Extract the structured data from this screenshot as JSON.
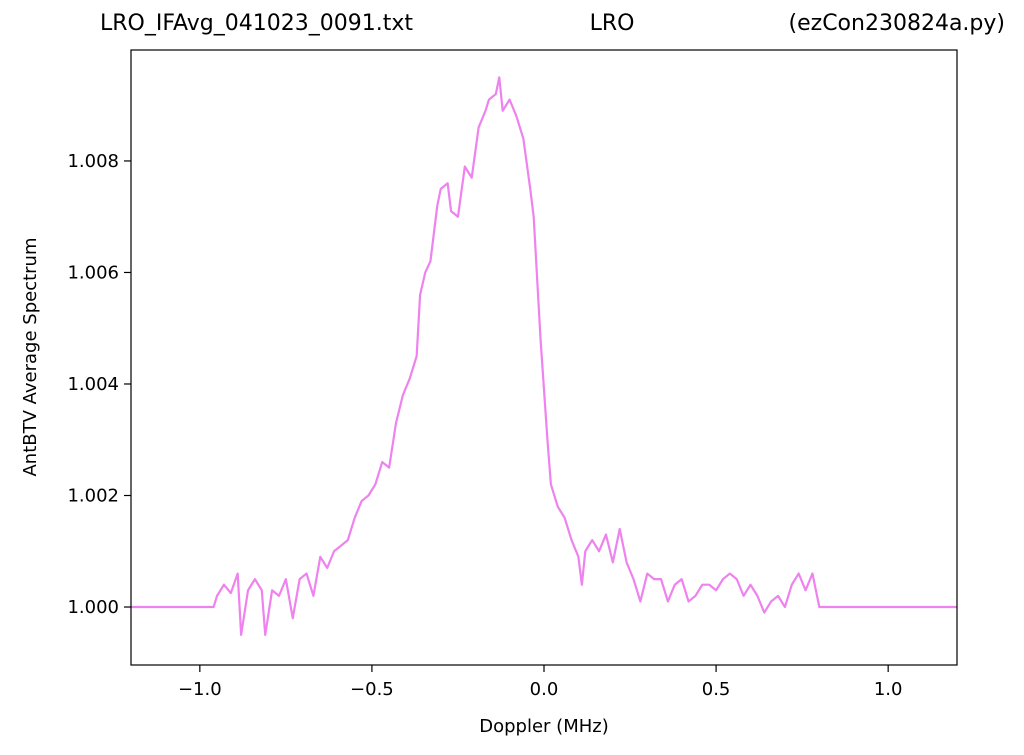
{
  "chart_data": {
    "type": "line",
    "title_left": "LRO_IFAvg_041023_0091.txt",
    "title_center": "LRO",
    "title_right": "(ezCon230824a.py)",
    "x_label": "Doppler (MHz)",
    "y_label": "AntBTV Average Spectrum",
    "xlim": [
      -1.2,
      1.2
    ],
    "ylim": [
      0.99896,
      1.00999
    ],
    "xticks": [
      {
        "value": -1.0,
        "label": "−1.0"
      },
      {
        "value": -0.5,
        "label": "−0.5"
      },
      {
        "value": 0.0,
        "label": "0.0"
      },
      {
        "value": 0.5,
        "label": "0.5"
      },
      {
        "value": 1.0,
        "label": "1.0"
      }
    ],
    "yticks": [
      {
        "value": 1.0,
        "label": "1.000"
      },
      {
        "value": 1.002,
        "label": "1.002"
      },
      {
        "value": 1.004,
        "label": "1.004"
      },
      {
        "value": 1.006,
        "label": "1.006"
      },
      {
        "value": 1.008,
        "label": "1.008"
      }
    ],
    "grid": false,
    "x": [
      -1.2,
      -0.96,
      -0.95,
      -0.93,
      -0.91,
      -0.89,
      -0.88,
      -0.86,
      -0.84,
      -0.82,
      -0.81,
      -0.79,
      -0.77,
      -0.75,
      -0.73,
      -0.71,
      -0.69,
      -0.67,
      -0.65,
      -0.63,
      -0.61,
      -0.59,
      -0.57,
      -0.55,
      -0.53,
      -0.51,
      -0.49,
      -0.47,
      -0.45,
      -0.43,
      -0.41,
      -0.39,
      -0.37,
      -0.36,
      -0.345,
      -0.33,
      -0.31,
      -0.3,
      -0.28,
      -0.27,
      -0.25,
      -0.23,
      -0.21,
      -0.19,
      -0.17,
      -0.16,
      -0.14,
      -0.13,
      -0.12,
      -0.1,
      -0.08,
      -0.06,
      -0.04,
      -0.03,
      -0.01,
      0.01,
      0.02,
      0.04,
      0.06,
      0.08,
      0.1,
      0.11,
      0.12,
      0.14,
      0.16,
      0.18,
      0.2,
      0.22,
      0.24,
      0.26,
      0.28,
      0.3,
      0.32,
      0.34,
      0.36,
      0.38,
      0.4,
      0.42,
      0.44,
      0.46,
      0.48,
      0.5,
      0.52,
      0.54,
      0.56,
      0.58,
      0.6,
      0.62,
      0.64,
      0.66,
      0.68,
      0.7,
      0.72,
      0.74,
      0.76,
      0.78,
      0.8,
      1.2
    ],
    "series": [
      {
        "name": "spectrum",
        "color": "#ee82ee",
        "values": [
          1.0,
          1.0,
          1.0002,
          1.0004,
          1.00025,
          1.0006,
          0.9995,
          1.0003,
          1.0005,
          1.0003,
          0.9995,
          1.0003,
          1.0002,
          1.0005,
          0.9998,
          1.0005,
          1.0006,
          1.0002,
          1.0009,
          1.0007,
          1.001,
          1.0011,
          1.0012,
          1.0016,
          1.0019,
          1.002,
          1.0022,
          1.0026,
          1.0025,
          1.0033,
          1.0038,
          1.0041,
          1.0045,
          1.0056,
          1.006,
          1.0062,
          1.0072,
          1.0075,
          1.0076,
          1.0071,
          1.007,
          1.0079,
          1.0077,
          1.0086,
          1.0089,
          1.0091,
          1.0092,
          1.0095,
          1.0089,
          1.0091,
          1.0088,
          1.0084,
          1.0075,
          1.007,
          1.0048,
          1.003,
          1.0022,
          1.0018,
          1.0016,
          1.0012,
          1.0009,
          1.0004,
          1.001,
          1.0012,
          1.001,
          1.0013,
          1.0008,
          1.0014,
          1.0008,
          1.0005,
          1.0001,
          1.0006,
          1.0005,
          1.0005,
          1.0001,
          1.0004,
          1.0005,
          1.0001,
          1.0002,
          1.0004,
          1.0004,
          1.0003,
          1.0005,
          1.0006,
          1.0005,
          1.0002,
          1.0004,
          1.0002,
          0.9999,
          1.0001,
          1.0002,
          1.0,
          1.0004,
          1.0006,
          1.0003,
          1.0006,
          1.0,
          1.0
        ]
      }
    ]
  }
}
